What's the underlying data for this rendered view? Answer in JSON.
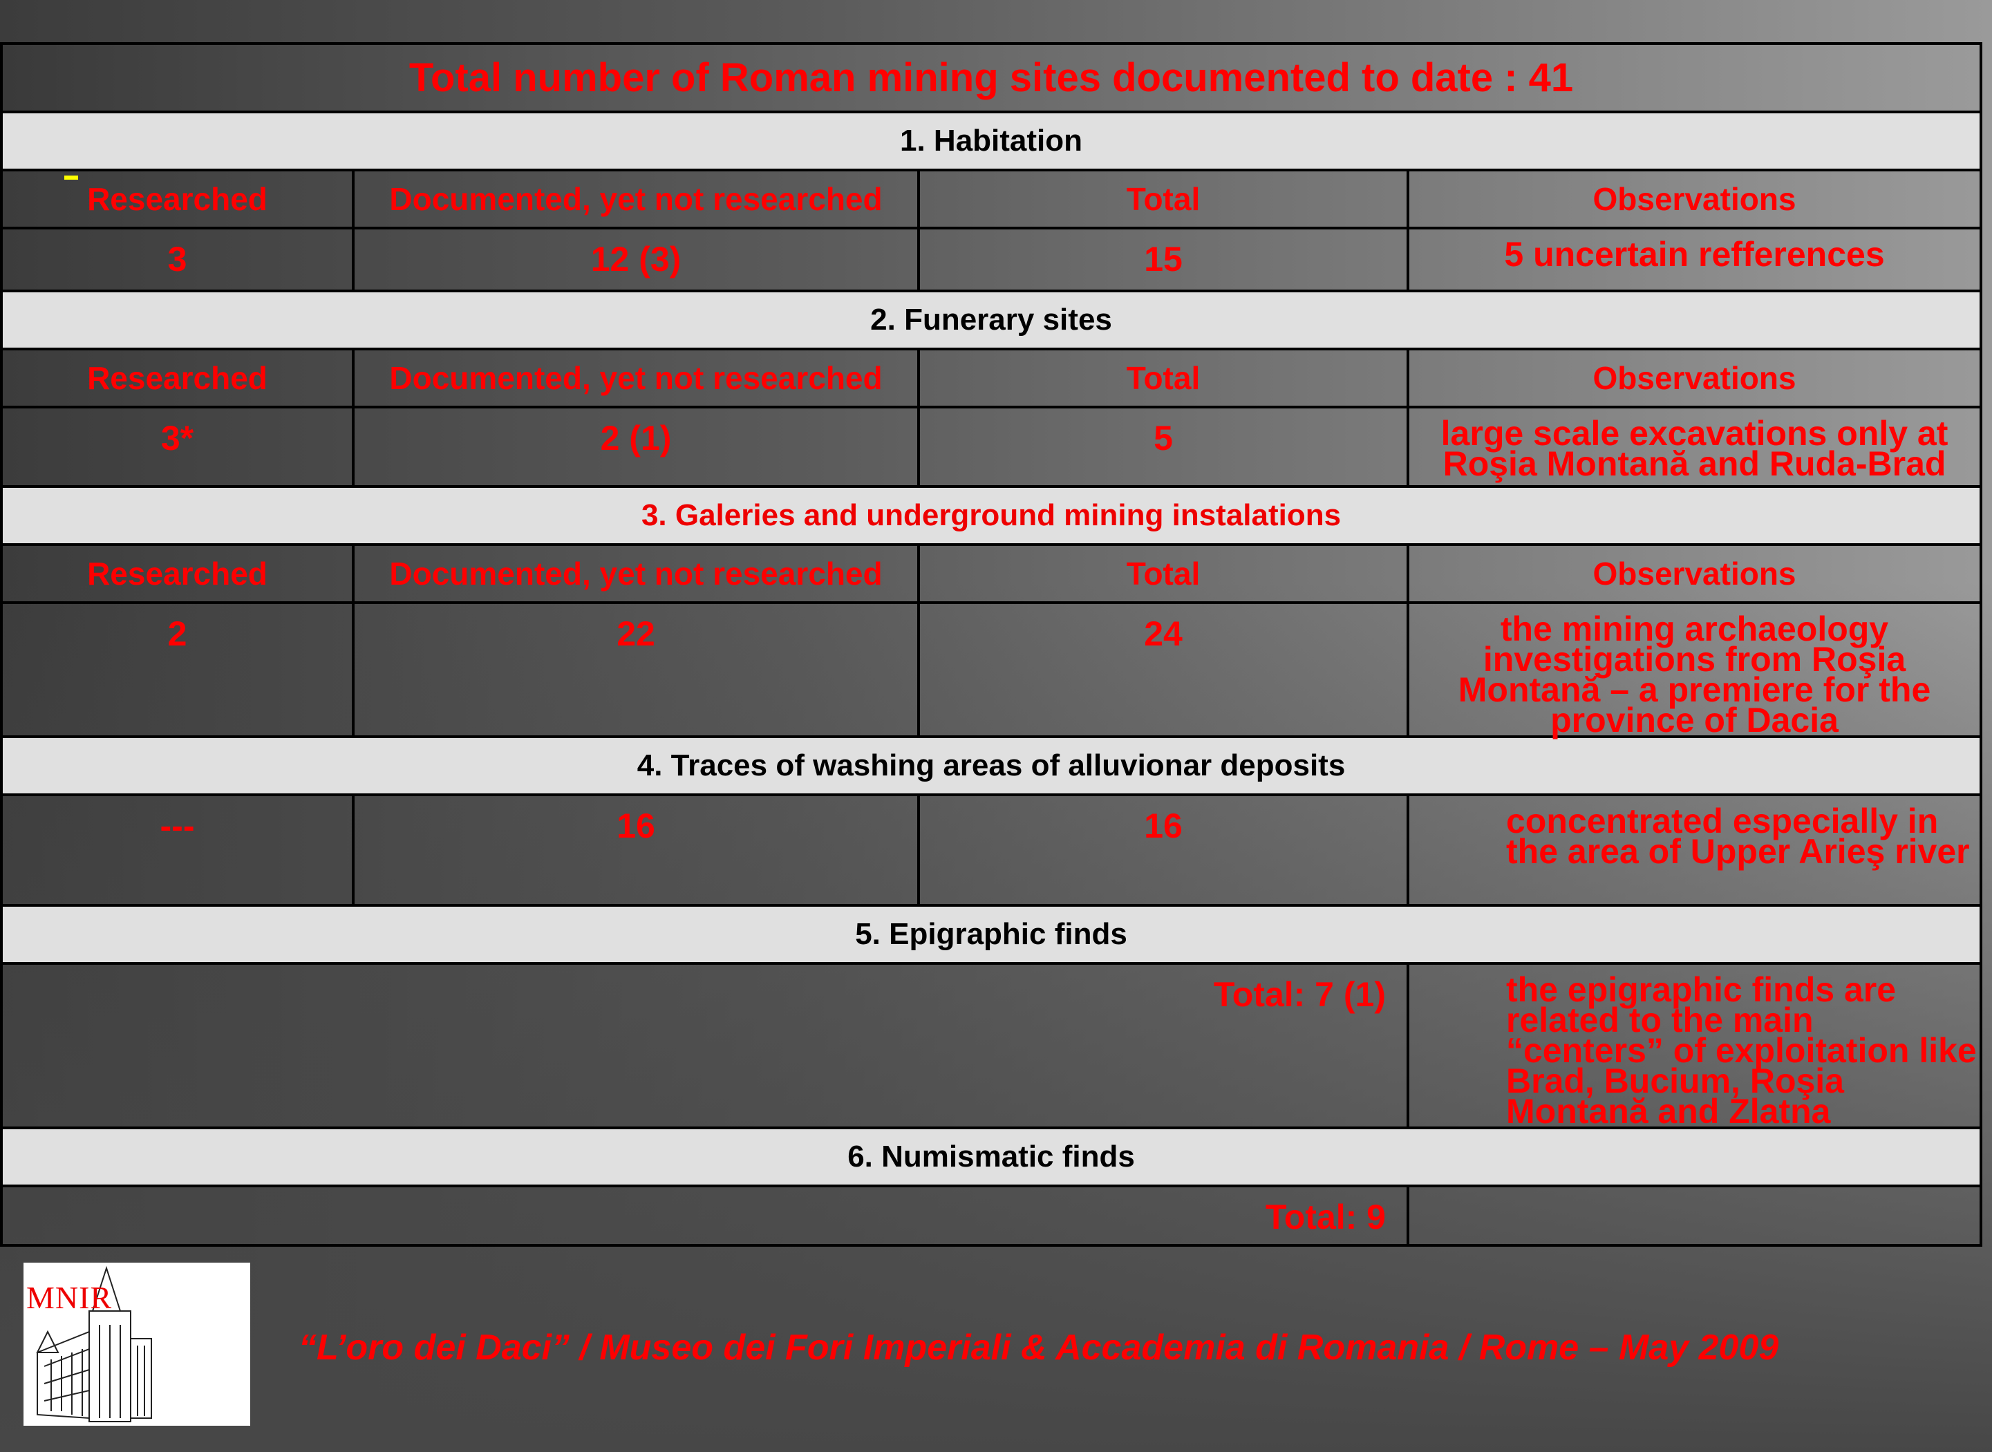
{
  "title": "Total number of Roman mining sites documented to date : 41",
  "columns": [
    "Researched",
    "Documented, yet not researched",
    "Total",
    "Observations"
  ],
  "sections": [
    {
      "heading": "1. Habitation",
      "values": [
        "3",
        "12 (3)",
        "15"
      ],
      "observation": "5 uncertain refferences"
    },
    {
      "heading": "2. Funerary sites",
      "values": [
        "3*",
        "2 (1)",
        "5"
      ],
      "observation": "large scale excavations only at Roşia Montană and Ruda-Brad"
    },
    {
      "heading": "3. Galeries and underground mining instalations",
      "values": [
        "2",
        "22",
        "24"
      ],
      "observation": "the mining archaeology investigations from Roşia Montană – a premiere for the province of Dacia"
    },
    {
      "heading": "4. Traces of washing areas of alluvionar deposits",
      "values": [
        "---",
        "16",
        "16"
      ],
      "observation": "concentrated especially in the area of Upper Arieş river"
    },
    {
      "heading": "5. Epigraphic finds",
      "total": "Total: 7 (1)",
      "observation": "the epigraphic finds are related to the main “centers” of exploitation like Brad, Bucium, Roşia Montană and Zlatna"
    },
    {
      "heading": "6. Numismatic finds",
      "total": "Total: 9",
      "observation": ""
    }
  ],
  "logo": {
    "text": "MNIR"
  },
  "footer": "“L’oro dei Daci” / Museo dei Fori Imperiali & Accademia di Romania / Rome – May 2009",
  "colors": {
    "text": "#ff0000",
    "section_bg": "#e0e0e0",
    "marker": "#ffff00"
  }
}
